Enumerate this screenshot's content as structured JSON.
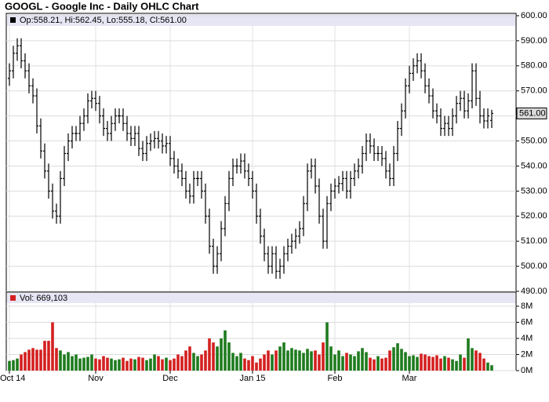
{
  "chart_data": [
    {
      "type": "ohlc",
      "title": "GOOGL - Google Inc - Daily OHLC Chart",
      "legend_text": "Op:558.21, Hi:562.45, Lo:555.18, Cl:561.00",
      "color": "#000000",
      "categories": [
        "Oct 14",
        null,
        null,
        null,
        null,
        null,
        null,
        null,
        null,
        null,
        null,
        null,
        null,
        null,
        null,
        null,
        null,
        null,
        null,
        null,
        null,
        null,
        "Nov",
        null,
        null,
        null,
        null,
        null,
        null,
        null,
        null,
        null,
        null,
        null,
        null,
        null,
        null,
        null,
        null,
        null,
        null,
        "Dec",
        null,
        null,
        null,
        null,
        null,
        null,
        null,
        null,
        null,
        null,
        null,
        null,
        null,
        null,
        null,
        null,
        null,
        null,
        null,
        null,
        "Jan 15",
        null,
        null,
        null,
        null,
        null,
        null,
        null,
        null,
        null,
        null,
        null,
        null,
        null,
        null,
        null,
        null,
        null,
        null,
        null,
        null,
        "Feb",
        null,
        null,
        null,
        null,
        null,
        null,
        null,
        null,
        null,
        null,
        null,
        null,
        null,
        null,
        null,
        null,
        null,
        null,
        "Mar",
        null,
        null,
        null,
        null,
        null,
        null,
        null,
        null,
        null,
        null,
        null,
        null,
        null,
        null,
        null,
        null,
        null,
        null,
        null,
        null,
        null
      ],
      "open": [
        575,
        578,
        585,
        588,
        582,
        578,
        572,
        568,
        556,
        546,
        538,
        530,
        522,
        520,
        535,
        545,
        550,
        553,
        553,
        557,
        560,
        566,
        567,
        565,
        560,
        555,
        553,
        557,
        560,
        560,
        557,
        553,
        551,
        553,
        547,
        545,
        549,
        550,
        551,
        550,
        548,
        549,
        543,
        540,
        538,
        535,
        530,
        528,
        535,
        535,
        530,
        520,
        508,
        500,
        505,
        515,
        525,
        535,
        540,
        540,
        542,
        538,
        535,
        530,
        520,
        512,
        505,
        500,
        505,
        498,
        500,
        505,
        508,
        510,
        512,
        515,
        525,
        538,
        540,
        532,
        520,
        510,
        525,
        530,
        532,
        533,
        535,
        530,
        535,
        538,
        540,
        545,
        550,
        548,
        545,
        545,
        543,
        538,
        535,
        545,
        555,
        562,
        572,
        577,
        580,
        582,
        578,
        572,
        568,
        562,
        560,
        555,
        557,
        555,
        560,
        565,
        567,
        562,
        566,
        578,
        567,
        560,
        558,
        558.21
      ],
      "high": [
        581,
        588,
        591,
        591,
        585,
        581,
        575,
        571,
        559,
        549,
        541,
        533,
        525,
        538,
        548,
        553,
        556,
        556,
        560,
        563,
        569,
        570,
        570,
        568,
        563,
        558,
        560,
        563,
        563,
        563,
        560,
        556,
        556,
        556,
        550,
        552,
        553,
        554,
        554,
        553,
        552,
        552,
        546,
        543,
        541,
        538,
        533,
        538,
        538,
        538,
        533,
        523,
        511,
        508,
        518,
        528,
        538,
        543,
        543,
        545,
        545,
        541,
        538,
        533,
        523,
        515,
        508,
        508,
        508,
        503,
        508,
        511,
        513,
        515,
        518,
        528,
        541,
        543,
        543,
        535,
        523,
        528,
        533,
        535,
        536,
        538,
        538,
        538,
        541,
        543,
        548,
        553,
        553,
        551,
        548,
        548,
        546,
        541,
        548,
        558,
        565,
        575,
        580,
        583,
        585,
        585,
        581,
        575,
        571,
        565,
        563,
        560,
        560,
        563,
        568,
        570,
        570,
        569,
        581,
        581,
        570,
        563,
        563,
        562.45
      ],
      "low": [
        572,
        575,
        582,
        579,
        575,
        569,
        565,
        553,
        543,
        535,
        527,
        519,
        517,
        517,
        532,
        542,
        547,
        550,
        550,
        554,
        557,
        563,
        562,
        557,
        552,
        550,
        550,
        554,
        557,
        554,
        550,
        548,
        548,
        544,
        542,
        542,
        546,
        547,
        547,
        545,
        545,
        540,
        537,
        535,
        532,
        527,
        525,
        525,
        532,
        527,
        517,
        505,
        497,
        497,
        502,
        512,
        522,
        532,
        537,
        537,
        535,
        532,
        527,
        517,
        509,
        502,
        497,
        497,
        495,
        495,
        497,
        502,
        505,
        507,
        509,
        512,
        522,
        535,
        529,
        517,
        507,
        507,
        522,
        527,
        529,
        530,
        527,
        527,
        532,
        535,
        537,
        542,
        545,
        542,
        542,
        540,
        535,
        532,
        532,
        542,
        552,
        559,
        569,
        574,
        577,
        575,
        569,
        565,
        559,
        557,
        552,
        552,
        552,
        552,
        557,
        562,
        559,
        559,
        563,
        564,
        557,
        555,
        555,
        555.18
      ],
      "close": [
        578,
        585,
        588,
        582,
        578,
        572,
        568,
        556,
        546,
        538,
        530,
        522,
        520,
        535,
        545,
        550,
        553,
        553,
        557,
        560,
        566,
        567,
        565,
        560,
        555,
        553,
        557,
        560,
        560,
        557,
        553,
        551,
        553,
        547,
        545,
        549,
        550,
        551,
        550,
        548,
        549,
        543,
        540,
        538,
        535,
        530,
        528,
        535,
        535,
        530,
        520,
        508,
        500,
        505,
        515,
        525,
        535,
        540,
        540,
        542,
        538,
        535,
        530,
        520,
        512,
        505,
        500,
        505,
        498,
        500,
        505,
        508,
        510,
        512,
        515,
        525,
        538,
        540,
        532,
        520,
        510,
        525,
        530,
        532,
        533,
        535,
        530,
        535,
        538,
        540,
        545,
        550,
        548,
        545,
        545,
        543,
        538,
        535,
        545,
        555,
        562,
        572,
        577,
        580,
        582,
        578,
        572,
        568,
        562,
        560,
        555,
        557,
        555,
        560,
        565,
        567,
        562,
        566,
        578,
        567,
        560,
        558,
        560,
        561.0
      ],
      "last_price": {
        "value": 561.0,
        "label": "561.00"
      },
      "ylim": [
        490,
        600
      ],
      "yticks": [
        {
          "value": 490,
          "label": "490.00"
        },
        {
          "value": 500,
          "label": "500.00"
        },
        {
          "value": 510,
          "label": "510.00"
        },
        {
          "value": 520,
          "label": "520.00"
        },
        {
          "value": 530,
          "label": "530.00"
        },
        {
          "value": 540,
          "label": "540.00"
        },
        {
          "value": 550,
          "label": "550.00"
        },
        {
          "value": 560,
          "label": "560.00"
        },
        {
          "value": 570,
          "label": "570.00"
        },
        {
          "value": 580,
          "label": "580.00"
        },
        {
          "value": 590,
          "label": "590.00"
        },
        {
          "value": 600,
          "label": "600.00"
        }
      ],
      "grid": true
    },
    {
      "type": "bar",
      "legend_text": "Vol: 669,103",
      "up_color": "#1e7b1e",
      "down_color": "#d42020",
      "values": [
        1.2,
        1.3,
        1.5,
        2.0,
        2.3,
        2.6,
        2.8,
        2.6,
        2.6,
        3.7,
        3.7,
        6.0,
        2.8,
        2.5,
        2.0,
        2.3,
        1.8,
        2.0,
        1.5,
        1.6,
        1.7,
        2.0,
        1.5,
        1.4,
        1.8,
        1.6,
        1.5,
        1.3,
        1.4,
        1.6,
        1.2,
        1.5,
        1.4,
        1.7,
        1.6,
        1.3,
        1.5,
        2.0,
        1.8,
        1.4,
        1.6,
        1.3,
        1.5,
        2.0,
        1.8,
        2.5,
        3.0,
        2.2,
        1.8,
        2.0,
        2.5,
        4.0,
        3.5,
        3.0,
        4.0,
        5.0,
        3.5,
        2.2,
        1.8,
        2.2,
        1.5,
        1.3,
        1.8,
        1.0,
        1.5,
        2.0,
        2.5,
        2.0,
        2.5,
        3.0,
        3.5,
        2.5,
        2.8,
        2.6,
        2.5,
        2.2,
        2.7,
        2.4,
        2.5,
        2.0,
        3.5,
        6.0,
        3.0,
        2.0,
        2.5,
        1.8,
        2.2,
        2.0,
        1.8,
        2.4,
        2.8,
        2.3,
        1.6,
        1.4,
        1.8,
        1.5,
        1.6,
        2.5,
        2.9,
        3.4,
        2.7,
        2.3,
        1.8,
        1.9,
        1.7,
        2.1,
        2.0,
        1.8,
        1.7,
        1.9,
        1.5,
        1.8,
        1.6,
        1.4,
        1.2,
        2.0,
        1.6,
        4.0,
        2.8,
        2.5,
        2.2,
        1.5,
        1.0,
        0.669103
      ],
      "ylim": [
        0,
        9.2
      ],
      "yticks": [
        {
          "value": 0,
          "label": "0M"
        },
        {
          "value": 2,
          "label": "2M"
        },
        {
          "value": 4,
          "label": "4M"
        },
        {
          "value": 6,
          "label": "6M"
        },
        {
          "value": 8,
          "label": "8M"
        }
      ],
      "grid": true
    }
  ]
}
